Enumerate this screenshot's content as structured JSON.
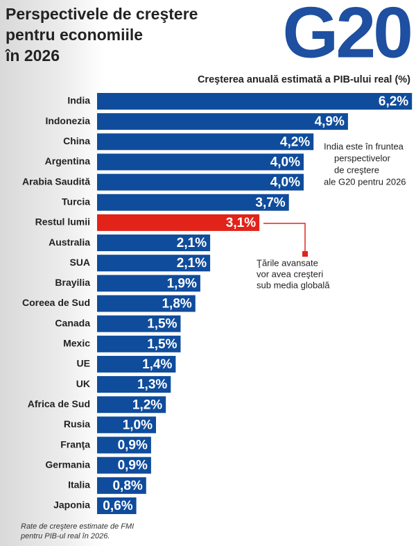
{
  "chart_data": {
    "type": "bar",
    "title": [
      "Perspectivele de creştere",
      "pentru economiile",
      "în 2026"
    ],
    "logo": "G20",
    "subtitle": "Creşterea anuală estimată a PIB-ului real (%)",
    "categories": [
      "India",
      "Indonezia",
      "China",
      "Argentina",
      "Arabia Saudită",
      "Turcia",
      "Restul lumii",
      "Australia",
      "SUA",
      "Brayilia",
      "Coreea de Sud",
      "Canada",
      "Mexic",
      "UE",
      "UK",
      "Africa de Sud",
      "Rusia",
      "Franţa",
      "Germania",
      "Italia",
      "Japonia"
    ],
    "values": [
      6.2,
      4.9,
      4.2,
      4.0,
      4.0,
      3.7,
      3.1,
      2.1,
      2.1,
      1.9,
      1.8,
      1.5,
      1.5,
      1.4,
      1.3,
      1.2,
      1.0,
      0.9,
      0.9,
      0.8,
      0.6
    ],
    "value_labels": [
      "6,2%",
      "4,9%",
      "4,2%",
      "4,0%",
      "4,0%",
      "3,7%",
      "3,1%",
      "2,1%",
      "2,1%",
      "1,9%",
      "1,8%",
      "1,5%",
      "1,5%",
      "1,4%",
      "1,3%",
      "1,2%",
      "1,0%",
      "0,9%",
      "0,9%",
      "0,8%",
      "0,6%"
    ],
    "colors": [
      "#0f4c9c",
      "#0f4c9c",
      "#0f4c9c",
      "#0f4c9c",
      "#0f4c9c",
      "#0f4c9c",
      "#e2231a",
      "#0f4c9c",
      "#0f4c9c",
      "#0f4c9c",
      "#0f4c9c",
      "#0f4c9c",
      "#0f4c9c",
      "#0f4c9c",
      "#0f4c9c",
      "#0f4c9c",
      "#0f4c9c",
      "#0f4c9c",
      "#0f4c9c",
      "#0f4c9c",
      "#0f4c9c"
    ],
    "annotations": [
      [
        "India este în fruntea",
        "perspectivelor",
        "de creştere",
        "ale G20 pentru 2026"
      ],
      [
        "Ţările avansate",
        "vor avea creşteri",
        "sub media globală"
      ]
    ],
    "footnote": [
      "Rate de creştere estimate de FMI",
      "pentru PIB-ul real în 2026."
    ]
  }
}
